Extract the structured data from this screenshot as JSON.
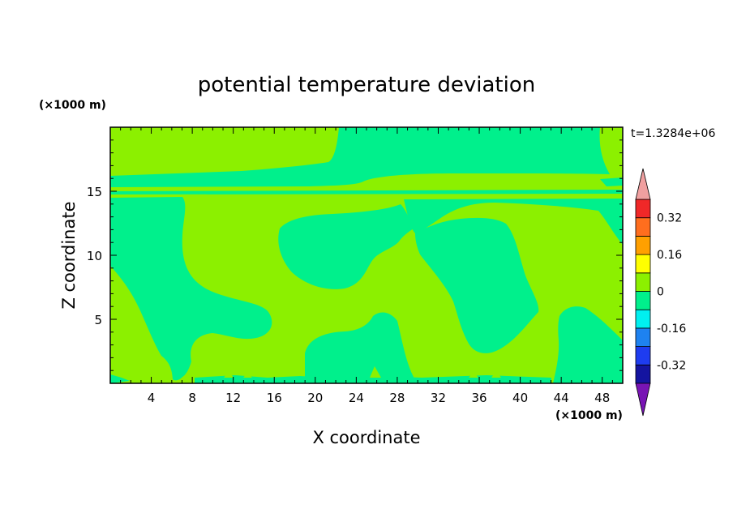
{
  "chart_data": {
    "type": "heatmap",
    "title": "potential temperature deviation",
    "time_label": "t=1.3284e+06",
    "xlabel": "X coordinate",
    "ylabel": "Z coordinate",
    "x_unit_label": "(×1000 m)",
    "y_unit_label": "(×1000 m)",
    "xlim": [
      0,
      50
    ],
    "ylim": [
      0,
      20
    ],
    "x_ticks": [
      4,
      8,
      12,
      16,
      20,
      24,
      28,
      32,
      36,
      40,
      44,
      48
    ],
    "y_ticks": [
      5,
      10,
      15
    ],
    "colorbar": {
      "levels": [
        -0.4,
        -0.32,
        -0.24,
        -0.16,
        -0.08,
        0,
        0.08,
        0.16,
        0.24,
        0.32,
        0.4
      ],
      "colors": [
        "#5a0fb4",
        "#1414a0",
        "#1e3cf0",
        "#1e82f0",
        "#00f0f0",
        "#00f08c",
        "#8cf000",
        "#ffff00",
        "#ffa000",
        "#ff6e1e",
        "#f02828"
      ],
      "under_color": "#7814b4",
      "over_color": "#f0a0a0",
      "tick_labels": [
        "0.32",
        "0.16",
        "0",
        "-0.16",
        "-0.32"
      ],
      "tick_values": [
        0.32,
        0.16,
        0,
        -0.16,
        -0.32
      ]
    },
    "field": {
      "background_level": "0 to 0.08",
      "background_color": "#8cf000",
      "region_level": "-0.08 to 0",
      "region_color": "#00f08c"
    }
  }
}
